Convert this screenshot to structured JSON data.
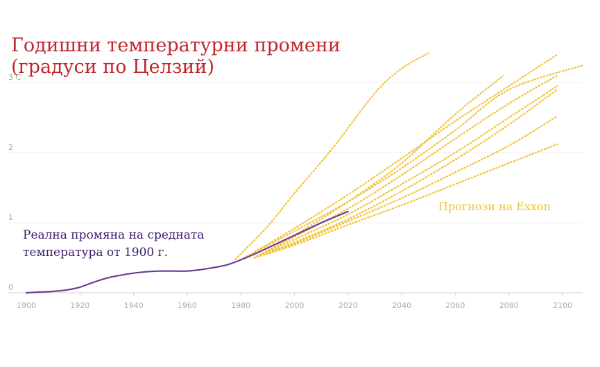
{
  "chart_data": {
    "type": "line",
    "title": "Годишни температурни промени\n(градуси по Целзий)",
    "x_ticks": [
      "1900",
      "1920",
      "1940",
      "1960",
      "1980",
      "2000",
      "2020",
      "2040",
      "2060",
      "2080",
      "2100"
    ],
    "y_ticks": [
      "0",
      "1",
      "2",
      "3 C"
    ],
    "xlim": [
      1900,
      2108
    ],
    "ylim": [
      0,
      3.5
    ],
    "grid": true,
    "actual": {
      "label": "Реална промяна на средната температура от 1900 г.",
      "color": "#6b3f96",
      "x": [
        1900,
        1905,
        1910,
        1915,
        1920,
        1925,
        1930,
        1935,
        1940,
        1945,
        1950,
        1955,
        1960,
        1965,
        1970,
        1975,
        1980,
        1985,
        1990,
        1995,
        2000,
        2005,
        2010,
        2015,
        2020
      ],
      "y": [
        0,
        0.01,
        0.02,
        0.04,
        0.08,
        0.15,
        0.21,
        0.25,
        0.28,
        0.3,
        0.31,
        0.31,
        0.31,
        0.33,
        0.36,
        0.4,
        0.47,
        0.55,
        0.64,
        0.73,
        0.82,
        0.91,
        1.0,
        1.08,
        1.16
      ]
    },
    "projections_label": "Прогнози на Exxon",
    "projections_color": "#f2c335",
    "projections": [
      {
        "x": [
          1978,
          1990,
          2000,
          2015,
          2030,
          2040,
          2050
        ],
        "y": [
          0.48,
          0.95,
          1.42,
          2.1,
          2.85,
          3.2,
          3.42
        ]
      },
      {
        "x": [
          1980,
          2000,
          2020,
          2040,
          2060,
          2080,
          2098
        ],
        "y": [
          0.47,
          0.92,
          1.4,
          1.92,
          2.45,
          2.95,
          3.4
        ]
      },
      {
        "x": [
          1980,
          2000,
          2020,
          2040,
          2060,
          2080,
          2108
        ],
        "y": [
          0.47,
          0.88,
          1.3,
          1.78,
          2.32,
          2.9,
          3.25
        ]
      },
      {
        "x": [
          1985,
          2000,
          2020,
          2040,
          2060,
          2078
        ],
        "y": [
          0.5,
          0.82,
          1.3,
          1.85,
          2.55,
          3.1
        ]
      },
      {
        "x": [
          1985,
          2000,
          2020,
          2040,
          2060,
          2080,
          2098
        ],
        "y": [
          0.5,
          0.8,
          1.2,
          1.68,
          2.2,
          2.7,
          3.1
        ]
      },
      {
        "x": [
          1985,
          2000,
          2020,
          2040,
          2060,
          2080,
          2098
        ],
        "y": [
          0.5,
          0.76,
          1.12,
          1.55,
          2.0,
          2.5,
          2.95
        ]
      },
      {
        "x": [
          1985,
          2000,
          2020,
          2040,
          2060,
          2080,
          2098
        ],
        "y": [
          0.5,
          0.72,
          1.05,
          1.45,
          1.9,
          2.4,
          2.9
        ]
      },
      {
        "x": [
          1985,
          2000,
          2020,
          2040,
          2060,
          2080,
          2098
        ],
        "y": [
          0.5,
          0.7,
          1.02,
          1.35,
          1.72,
          2.1,
          2.52
        ]
      },
      {
        "x": [
          1985,
          2000,
          2020,
          2040,
          2060,
          2080,
          2098
        ],
        "y": [
          0.5,
          0.68,
          0.97,
          1.25,
          1.55,
          1.85,
          2.12
        ]
      }
    ]
  }
}
